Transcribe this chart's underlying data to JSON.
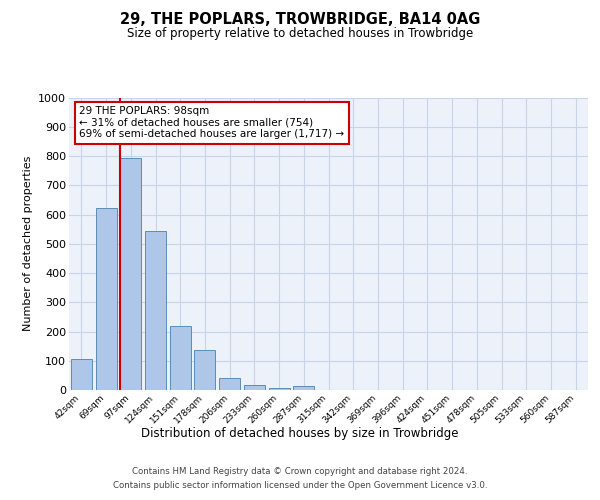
{
  "title": "29, THE POPLARS, TROWBRIDGE, BA14 0AG",
  "subtitle": "Size of property relative to detached houses in Trowbridge",
  "xlabel": "Distribution of detached houses by size in Trowbridge",
  "ylabel": "Number of detached properties",
  "bar_values": [
    107,
    622,
    793,
    543,
    220,
    136,
    42,
    17,
    8,
    12,
    0,
    0,
    0,
    0,
    0,
    0,
    0,
    0,
    0,
    0,
    0
  ],
  "categories": [
    "42sqm",
    "69sqm",
    "97sqm",
    "124sqm",
    "151sqm",
    "178sqm",
    "206sqm",
    "233sqm",
    "260sqm",
    "287sqm",
    "315sqm",
    "342sqm",
    "369sqm",
    "396sqm",
    "424sqm",
    "451sqm",
    "478sqm",
    "505sqm",
    "533sqm",
    "560sqm",
    "587sqm"
  ],
  "bar_color": "#aec6e8",
  "bar_edge_color": "#5b8db8",
  "property_bin_index": 2,
  "marker_line_color": "#cc0000",
  "ylim_max": 1000,
  "yticks": [
    0,
    100,
    200,
    300,
    400,
    500,
    600,
    700,
    800,
    900,
    1000
  ],
  "annotation_text": "29 THE POPLARS: 98sqm\n← 31% of detached houses are smaller (754)\n69% of semi-detached houses are larger (1,717) →",
  "annotation_box_facecolor": "#ffffff",
  "annotation_box_edgecolor": "#cc0000",
  "grid_color": "#c8d4e8",
  "axes_facecolor": "#edf1fa",
  "footer_line1": "Contains HM Land Registry data © Crown copyright and database right 2024.",
  "footer_line2": "Contains public sector information licensed under the Open Government Licence v3.0."
}
